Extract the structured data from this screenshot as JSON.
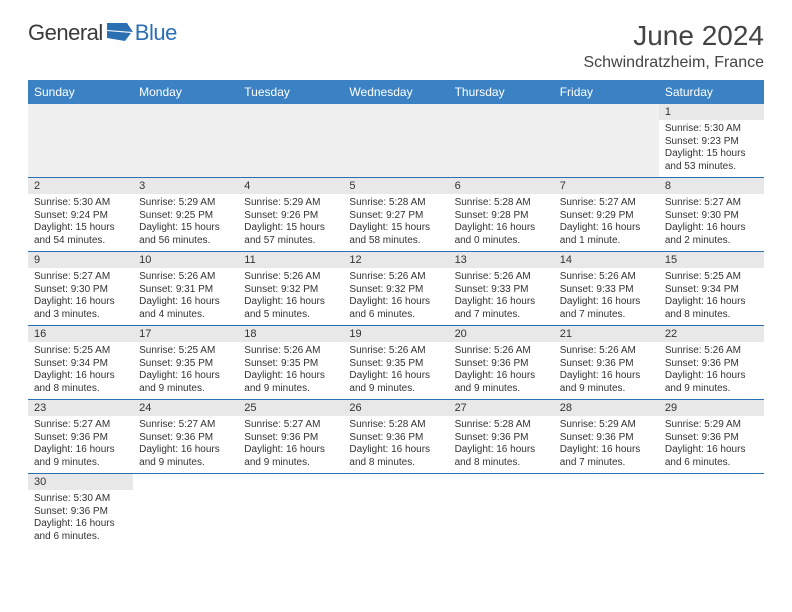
{
  "logo": {
    "part1": "General",
    "part2": "Blue"
  },
  "title": "June 2024",
  "location": "Schwindratzheim, France",
  "colors": {
    "header_bg": "#3b82c4",
    "header_text": "#ffffff",
    "row_shade": "#e8e8e8",
    "blank_bg": "#f0f0f0",
    "border": "#2b6fb3",
    "logo_blue": "#2b6fb3",
    "text": "#333333"
  },
  "weekdays": [
    "Sunday",
    "Monday",
    "Tuesday",
    "Wednesday",
    "Thursday",
    "Friday",
    "Saturday"
  ],
  "weeks": [
    [
      null,
      null,
      null,
      null,
      null,
      null,
      {
        "n": "1",
        "sunrise": "Sunrise: 5:30 AM",
        "sunset": "Sunset: 9:23 PM",
        "daylight1": "Daylight: 15 hours",
        "daylight2": "and 53 minutes."
      }
    ],
    [
      {
        "n": "2",
        "sunrise": "Sunrise: 5:30 AM",
        "sunset": "Sunset: 9:24 PM",
        "daylight1": "Daylight: 15 hours",
        "daylight2": "and 54 minutes."
      },
      {
        "n": "3",
        "sunrise": "Sunrise: 5:29 AM",
        "sunset": "Sunset: 9:25 PM",
        "daylight1": "Daylight: 15 hours",
        "daylight2": "and 56 minutes."
      },
      {
        "n": "4",
        "sunrise": "Sunrise: 5:29 AM",
        "sunset": "Sunset: 9:26 PM",
        "daylight1": "Daylight: 15 hours",
        "daylight2": "and 57 minutes."
      },
      {
        "n": "5",
        "sunrise": "Sunrise: 5:28 AM",
        "sunset": "Sunset: 9:27 PM",
        "daylight1": "Daylight: 15 hours",
        "daylight2": "and 58 minutes."
      },
      {
        "n": "6",
        "sunrise": "Sunrise: 5:28 AM",
        "sunset": "Sunset: 9:28 PM",
        "daylight1": "Daylight: 16 hours",
        "daylight2": "and 0 minutes."
      },
      {
        "n": "7",
        "sunrise": "Sunrise: 5:27 AM",
        "sunset": "Sunset: 9:29 PM",
        "daylight1": "Daylight: 16 hours",
        "daylight2": "and 1 minute."
      },
      {
        "n": "8",
        "sunrise": "Sunrise: 5:27 AM",
        "sunset": "Sunset: 9:30 PM",
        "daylight1": "Daylight: 16 hours",
        "daylight2": "and 2 minutes."
      }
    ],
    [
      {
        "n": "9",
        "sunrise": "Sunrise: 5:27 AM",
        "sunset": "Sunset: 9:30 PM",
        "daylight1": "Daylight: 16 hours",
        "daylight2": "and 3 minutes."
      },
      {
        "n": "10",
        "sunrise": "Sunrise: 5:26 AM",
        "sunset": "Sunset: 9:31 PM",
        "daylight1": "Daylight: 16 hours",
        "daylight2": "and 4 minutes."
      },
      {
        "n": "11",
        "sunrise": "Sunrise: 5:26 AM",
        "sunset": "Sunset: 9:32 PM",
        "daylight1": "Daylight: 16 hours",
        "daylight2": "and 5 minutes."
      },
      {
        "n": "12",
        "sunrise": "Sunrise: 5:26 AM",
        "sunset": "Sunset: 9:32 PM",
        "daylight1": "Daylight: 16 hours",
        "daylight2": "and 6 minutes."
      },
      {
        "n": "13",
        "sunrise": "Sunrise: 5:26 AM",
        "sunset": "Sunset: 9:33 PM",
        "daylight1": "Daylight: 16 hours",
        "daylight2": "and 7 minutes."
      },
      {
        "n": "14",
        "sunrise": "Sunrise: 5:26 AM",
        "sunset": "Sunset: 9:33 PM",
        "daylight1": "Daylight: 16 hours",
        "daylight2": "and 7 minutes."
      },
      {
        "n": "15",
        "sunrise": "Sunrise: 5:25 AM",
        "sunset": "Sunset: 9:34 PM",
        "daylight1": "Daylight: 16 hours",
        "daylight2": "and 8 minutes."
      }
    ],
    [
      {
        "n": "16",
        "sunrise": "Sunrise: 5:25 AM",
        "sunset": "Sunset: 9:34 PM",
        "daylight1": "Daylight: 16 hours",
        "daylight2": "and 8 minutes."
      },
      {
        "n": "17",
        "sunrise": "Sunrise: 5:25 AM",
        "sunset": "Sunset: 9:35 PM",
        "daylight1": "Daylight: 16 hours",
        "daylight2": "and 9 minutes."
      },
      {
        "n": "18",
        "sunrise": "Sunrise: 5:26 AM",
        "sunset": "Sunset: 9:35 PM",
        "daylight1": "Daylight: 16 hours",
        "daylight2": "and 9 minutes."
      },
      {
        "n": "19",
        "sunrise": "Sunrise: 5:26 AM",
        "sunset": "Sunset: 9:35 PM",
        "daylight1": "Daylight: 16 hours",
        "daylight2": "and 9 minutes."
      },
      {
        "n": "20",
        "sunrise": "Sunrise: 5:26 AM",
        "sunset": "Sunset: 9:36 PM",
        "daylight1": "Daylight: 16 hours",
        "daylight2": "and 9 minutes."
      },
      {
        "n": "21",
        "sunrise": "Sunrise: 5:26 AM",
        "sunset": "Sunset: 9:36 PM",
        "daylight1": "Daylight: 16 hours",
        "daylight2": "and 9 minutes."
      },
      {
        "n": "22",
        "sunrise": "Sunrise: 5:26 AM",
        "sunset": "Sunset: 9:36 PM",
        "daylight1": "Daylight: 16 hours",
        "daylight2": "and 9 minutes."
      }
    ],
    [
      {
        "n": "23",
        "sunrise": "Sunrise: 5:27 AM",
        "sunset": "Sunset: 9:36 PM",
        "daylight1": "Daylight: 16 hours",
        "daylight2": "and 9 minutes."
      },
      {
        "n": "24",
        "sunrise": "Sunrise: 5:27 AM",
        "sunset": "Sunset: 9:36 PM",
        "daylight1": "Daylight: 16 hours",
        "daylight2": "and 9 minutes."
      },
      {
        "n": "25",
        "sunrise": "Sunrise: 5:27 AM",
        "sunset": "Sunset: 9:36 PM",
        "daylight1": "Daylight: 16 hours",
        "daylight2": "and 9 minutes."
      },
      {
        "n": "26",
        "sunrise": "Sunrise: 5:28 AM",
        "sunset": "Sunset: 9:36 PM",
        "daylight1": "Daylight: 16 hours",
        "daylight2": "and 8 minutes."
      },
      {
        "n": "27",
        "sunrise": "Sunrise: 5:28 AM",
        "sunset": "Sunset: 9:36 PM",
        "daylight1": "Daylight: 16 hours",
        "daylight2": "and 8 minutes."
      },
      {
        "n": "28",
        "sunrise": "Sunrise: 5:29 AM",
        "sunset": "Sunset: 9:36 PM",
        "daylight1": "Daylight: 16 hours",
        "daylight2": "and 7 minutes."
      },
      {
        "n": "29",
        "sunrise": "Sunrise: 5:29 AM",
        "sunset": "Sunset: 9:36 PM",
        "daylight1": "Daylight: 16 hours",
        "daylight2": "and 6 minutes."
      }
    ],
    [
      {
        "n": "30",
        "sunrise": "Sunrise: 5:30 AM",
        "sunset": "Sunset: 9:36 PM",
        "daylight1": "Daylight: 16 hours",
        "daylight2": "and 6 minutes."
      },
      null,
      null,
      null,
      null,
      null,
      null
    ]
  ]
}
